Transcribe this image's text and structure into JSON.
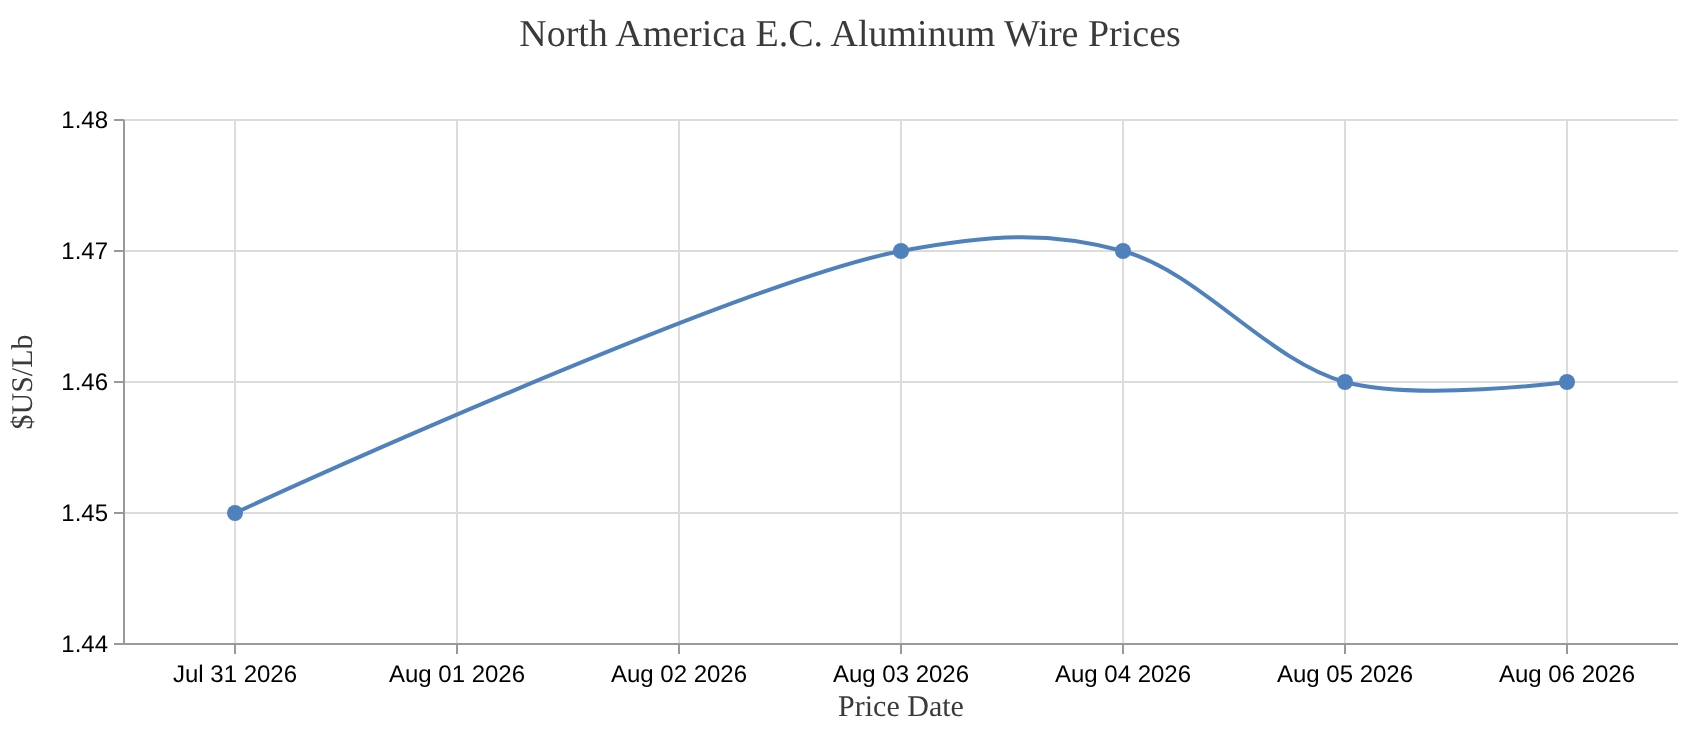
{
  "chart_data": {
    "type": "line",
    "title": "North America E.C. Aluminum Wire Prices",
    "xlabel": "Price Date",
    "ylabel": "$US/Lb",
    "x": [
      "2026-07-31",
      "2026-08-03",
      "2026-08-04",
      "2026-08-05",
      "2026-08-06"
    ],
    "series": [
      {
        "color": "#4f81bc",
        "values": [
          1.45,
          1.47,
          1.47,
          1.46,
          1.46
        ]
      }
    ],
    "xlim": [
      "2026-07-30T12:00",
      "2026-08-06T12:00"
    ],
    "xticks": [
      {
        "value": "2026-07-31",
        "label": "Jul 31 2026"
      },
      {
        "value": "2026-08-01",
        "label": "Aug 01 2026"
      },
      {
        "value": "2026-08-02",
        "label": "Aug 02 2026"
      },
      {
        "value": "2026-08-03",
        "label": "Aug 03 2026"
      },
      {
        "value": "2026-08-04",
        "label": "Aug 04 2026"
      },
      {
        "value": "2026-08-05",
        "label": "Aug 05 2026"
      },
      {
        "value": "2026-08-06",
        "label": "Aug 06 2026"
      }
    ],
    "ylim": [
      1.44,
      1.48
    ],
    "yticks": [
      1.44,
      1.45,
      1.46,
      1.47,
      1.48
    ],
    "grid": true,
    "marker": "circle",
    "line_style": "solid"
  }
}
